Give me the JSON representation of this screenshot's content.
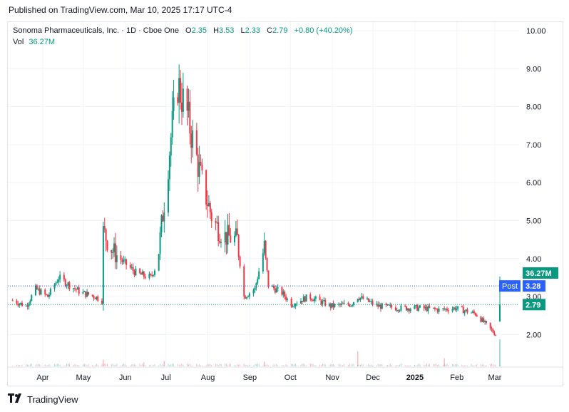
{
  "published": "Published on TradingView.com, Mar 10, 2025 17:17 UTC-4",
  "legend": {
    "symbol": "Sonoma Pharmaceuticals, Inc. · 1D · Cboe One",
    "o_label": "O",
    "o_value": "2.35",
    "h_label": "H",
    "h_value": "3.53",
    "l_label": "L",
    "l_value": "2.33",
    "c_label": "C",
    "c_value": "2.79",
    "change": "+0.80 (+40.20%)",
    "vol_label": "Vol",
    "vol_value": "36.27M"
  },
  "badges": {
    "volume": "36.27M",
    "post_label": "Post",
    "post_value": "3.28",
    "close_value": "2.79"
  },
  "footer": {
    "brand": "TradingView"
  },
  "colors": {
    "up": "#089981",
    "down": "#f23645",
    "post": "#2962ff",
    "grid": "#f0f3fa"
  },
  "chart_data": {
    "type": "candlestick",
    "y_ticks": [
      "10.00",
      "9.00",
      "8.00",
      "7.00",
      "6.00",
      "5.00",
      "4.00",
      "3.00",
      "2.00"
    ],
    "x_ticks": [
      "Apr",
      "May",
      "Jun",
      "Jul",
      "Aug",
      "Sep",
      "Oct",
      "Nov",
      "Dec",
      "2025",
      "Feb",
      "Mar"
    ],
    "ylim": [
      1.1,
      10.5
    ],
    "post_market_price": 3.28,
    "last_close": 2.79,
    "price_path": [
      [
        "2024-03-15",
        2.9
      ],
      [
        "2024-03-25",
        2.75
      ],
      [
        "2024-04-01",
        3.2
      ],
      [
        "2024-04-10",
        3.0
      ],
      [
        "2024-04-18",
        3.5
      ],
      [
        "2024-04-26",
        3.3
      ],
      [
        "2024-05-05",
        3.1
      ],
      [
        "2024-05-15",
        3.0
      ],
      [
        "2024-05-20",
        2.9
      ],
      [
        "2024-05-21",
        4.7
      ],
      [
        "2024-05-28",
        4.2
      ],
      [
        "2024-06-05",
        3.9
      ],
      [
        "2024-06-15",
        3.6
      ],
      [
        "2024-06-25",
        3.5
      ],
      [
        "2024-06-30",
        3.9
      ],
      [
        "2024-07-05",
        5.5
      ],
      [
        "2024-07-10",
        7.2
      ],
      [
        "2024-07-15",
        8.6
      ],
      [
        "2024-07-22",
        7.8
      ],
      [
        "2024-07-28",
        6.8
      ],
      [
        "2024-08-02",
        6.0
      ],
      [
        "2024-08-10",
        5.0
      ],
      [
        "2024-08-18",
        4.6
      ],
      [
        "2024-08-28",
        4.5
      ],
      [
        "2024-09-02",
        3.0
      ],
      [
        "2024-09-10",
        3.2
      ],
      [
        "2024-09-17",
        4.3
      ],
      [
        "2024-09-20",
        3.3
      ],
      [
        "2024-09-30",
        3.1
      ],
      [
        "2024-10-07",
        2.8
      ],
      [
        "2024-10-20",
        3.0
      ],
      [
        "2024-11-05",
        2.75
      ],
      [
        "2024-11-20",
        2.8
      ],
      [
        "2024-11-25",
        3.0
      ],
      [
        "2024-12-10",
        2.75
      ],
      [
        "2024-12-25",
        2.7
      ],
      [
        "2025-01-10",
        2.7
      ],
      [
        "2025-01-25",
        2.65
      ],
      [
        "2025-02-05",
        2.7
      ],
      [
        "2025-02-20",
        2.55
      ],
      [
        "2025-03-07",
        2.0
      ],
      [
        "2025-03-10",
        2.79
      ]
    ],
    "volume_spikes": [
      [
        "2024-05-21",
        0.25
      ],
      [
        "2024-06-20",
        0.15
      ],
      [
        "2024-07-05",
        0.2
      ],
      [
        "2024-09-17",
        0.18
      ],
      [
        "2024-11-25",
        0.55
      ],
      [
        "2025-01-28",
        0.3
      ],
      [
        "2025-03-10",
        1.0
      ]
    ]
  }
}
